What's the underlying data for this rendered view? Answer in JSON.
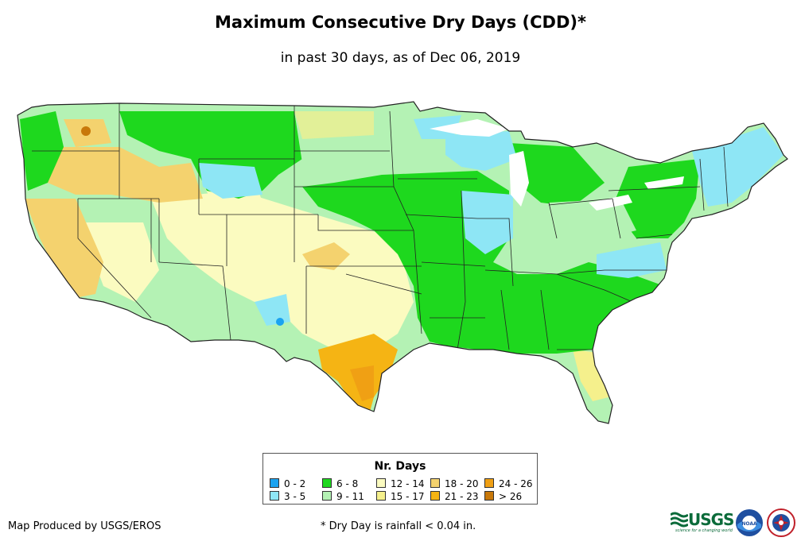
{
  "title": "Maximum Consecutive Dry Days (CDD)*",
  "subtitle": "in past 30 days, as of Dec 06, 2019",
  "legend": {
    "title": "Nr. Days",
    "items": [
      {
        "label": "0 - 2",
        "color": "#1aa3f0"
      },
      {
        "label": "3 - 5",
        "color": "#8ee6f5"
      },
      {
        "label": "6 - 8",
        "color": "#1ed81e"
      },
      {
        "label": "9 - 11",
        "color": "#b4f2b4"
      },
      {
        "label": "12 - 14",
        "color": "#fbfbc0"
      },
      {
        "label": "15 - 17",
        "color": "#f5f08c"
      },
      {
        "label": "18 - 20",
        "color": "#f4d26e"
      },
      {
        "label": "21 - 23",
        "color": "#f5b414"
      },
      {
        "label": "24 - 26",
        "color": "#f0a014"
      },
      {
        "label": "> 26",
        "color": "#c8780a"
      }
    ]
  },
  "credit": "Map Produced by USGS/EROS",
  "footnote": "* Dry Day is rainfall < 0.04 in.",
  "logos": {
    "usgs_word": "USGS",
    "usgs_tagline": "science for a changing world",
    "noaa_text": "NOAA"
  }
}
